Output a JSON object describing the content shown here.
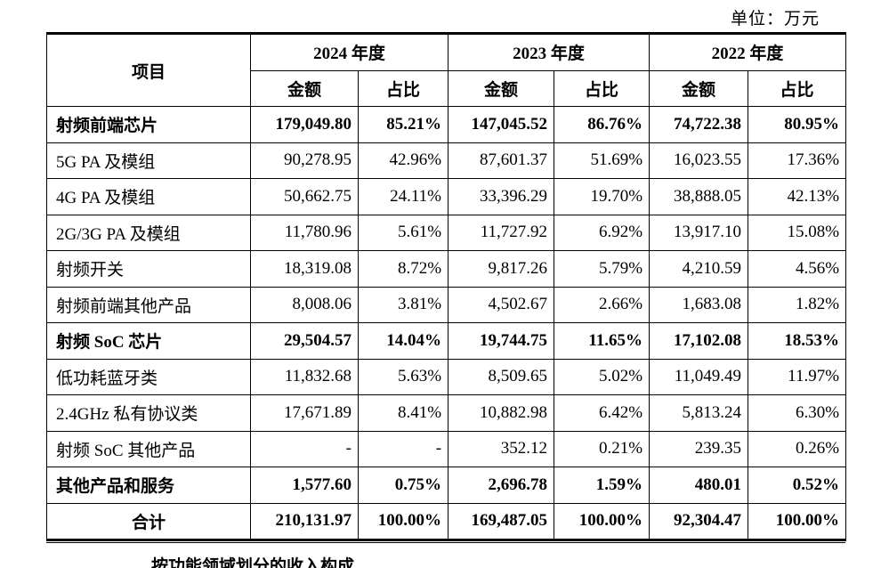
{
  "unit_label": "单位：万元",
  "header": {
    "item_label": "项目",
    "years": [
      "2024 年度",
      "2023 年度",
      "2022 年度"
    ],
    "amount_label": "金额",
    "ratio_label": "占比"
  },
  "rows": [
    {
      "name": "射频前端芯片",
      "bold": true,
      "v": [
        "179,049.80",
        "85.21%",
        "147,045.52",
        "86.76%",
        "74,722.38",
        "80.95%"
      ]
    },
    {
      "name": "5G PA 及模组",
      "bold": false,
      "v": [
        "90,278.95",
        "42.96%",
        "87,601.37",
        "51.69%",
        "16,023.55",
        "17.36%"
      ]
    },
    {
      "name": "4G PA 及模组",
      "bold": false,
      "v": [
        "50,662.75",
        "24.11%",
        "33,396.29",
        "19.70%",
        "38,888.05",
        "42.13%"
      ]
    },
    {
      "name": "2G/3G PA 及模组",
      "bold": false,
      "v": [
        "11,780.96",
        "5.61%",
        "11,727.92",
        "6.92%",
        "13,917.10",
        "15.08%"
      ]
    },
    {
      "name": "射频开关",
      "bold": false,
      "v": [
        "18,319.08",
        "8.72%",
        "9,817.26",
        "5.79%",
        "4,210.59",
        "4.56%"
      ]
    },
    {
      "name": "射频前端其他产品",
      "bold": false,
      "v": [
        "8,008.06",
        "3.81%",
        "4,502.67",
        "2.66%",
        "1,683.08",
        "1.82%"
      ]
    },
    {
      "name": "射频 SoC 芯片",
      "bold": true,
      "v": [
        "29,504.57",
        "14.04%",
        "19,744.75",
        "11.65%",
        "17,102.08",
        "18.53%"
      ]
    },
    {
      "name": "低功耗蓝牙类",
      "bold": false,
      "v": [
        "11,832.68",
        "5.63%",
        "8,509.65",
        "5.02%",
        "11,049.49",
        "11.97%"
      ]
    },
    {
      "name": "2.4GHz 私有协议类",
      "bold": false,
      "v": [
        "17,671.89",
        "8.41%",
        "10,882.98",
        "6.42%",
        "5,813.24",
        "6.30%"
      ]
    },
    {
      "name": "射频 SoC 其他产品",
      "bold": false,
      "v": [
        "-",
        "-",
        "352.12",
        "0.21%",
        "239.35",
        "0.26%"
      ]
    },
    {
      "name": "其他产品和服务",
      "bold": true,
      "v": [
        "1,577.60",
        "0.75%",
        "2,696.78",
        "1.59%",
        "480.01",
        "0.52%"
      ]
    },
    {
      "name": "合计",
      "bold": true,
      "total": true,
      "v": [
        "210,131.97",
        "100.00%",
        "169,487.05",
        "100.00%",
        "92,304.47",
        "100.00%"
      ]
    }
  ],
  "footer_text": "按功能领域划分的收入构成"
}
